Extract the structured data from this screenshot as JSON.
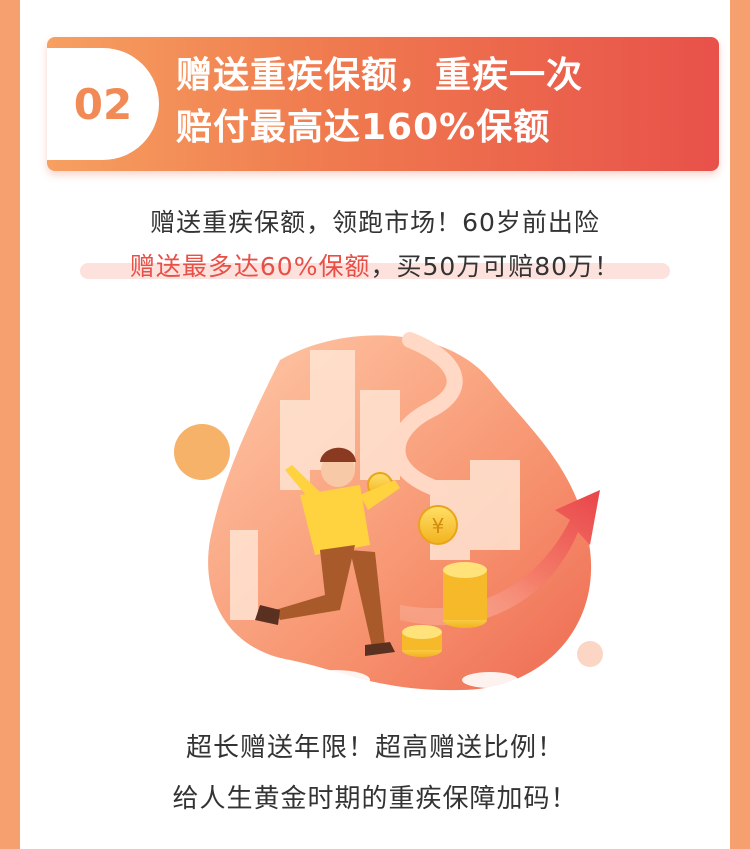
{
  "banner": {
    "badge_number": "02",
    "title_line1": "赠送重疾保额，重疾一次",
    "title_line2": "赔付最高达160%保额"
  },
  "intro": {
    "line1": "赠送重疾保额，领跑市场！60岁前出险",
    "line2_highlight": "赠送最多达60%保额",
    "line2_rest": "，买50万可赔80万！"
  },
  "illustration": {
    "icon": "person-chasing-coins-illustration",
    "coin_symbol": "¥"
  },
  "footer": {
    "line1": "超长赠送年限！超高赠送比例！",
    "line2": "给人生黄金时期的重疾保障加码！"
  },
  "colors": {
    "accent_orange": "#f28a55",
    "accent_red": "#e8514a",
    "highlight_text": "#e84f46",
    "page_border": "#f5a06e"
  }
}
